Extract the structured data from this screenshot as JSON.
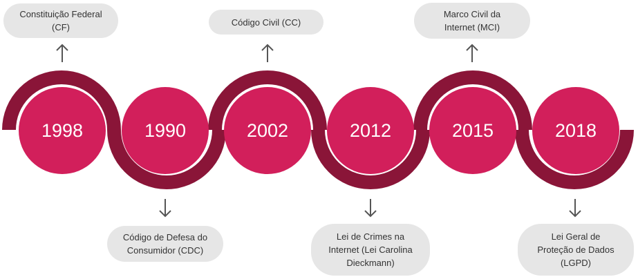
{
  "timeline": [
    {
      "year": "1998",
      "label": "Constituição Federal\n(CF)",
      "position": "top"
    },
    {
      "year": "1990",
      "label": "Código de Defesa do\nConsumidor (CDC)",
      "position": "bottom"
    },
    {
      "year": "2002",
      "label": "Código Civil (CC)",
      "position": "top"
    },
    {
      "year": "2012",
      "label": "Lei de Crimes na\nInternet (Lei Carolina\nDieckmann)",
      "position": "bottom"
    },
    {
      "year": "2015",
      "label": "Marco Civil da\nInternet (MCI)",
      "position": "top"
    },
    {
      "year": "2018",
      "label": "Lei Geral de\nProteção de Dados\n(LGPD)",
      "position": "bottom"
    }
  ],
  "colors": {
    "circle": "#d21f5b",
    "wave": "#8a1538",
    "box": "#e6e6e6",
    "arrow": "#555555"
  }
}
